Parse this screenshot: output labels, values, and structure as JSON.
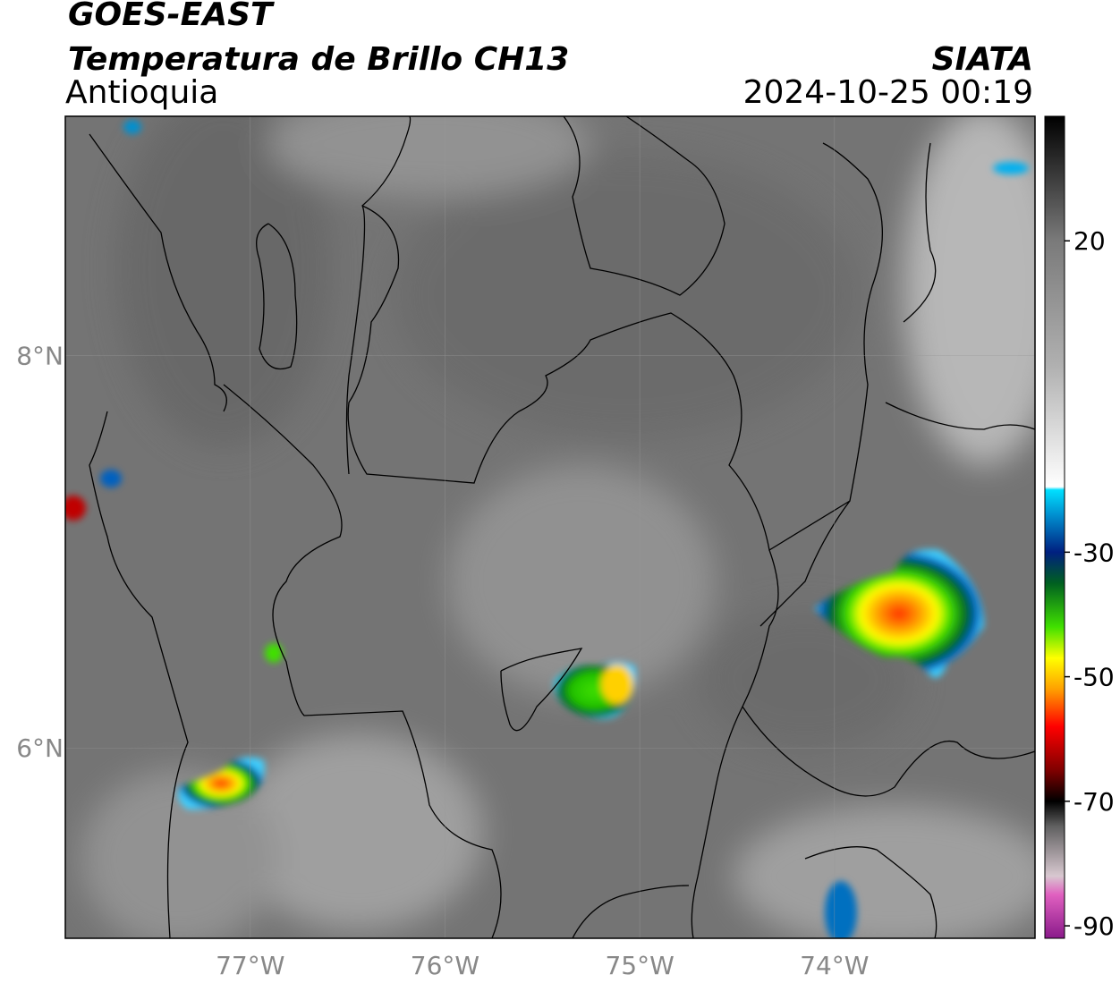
{
  "header": {
    "satellite": "GOES-EAST",
    "product": "Temperatura de Brillo CH13",
    "region": "Antioquia",
    "source": "SIATA",
    "datetime": "2024-10-25 00:19"
  },
  "map": {
    "lonlim": [
      -77.95,
      -72.97
    ],
    "latlim": [
      5.03,
      9.22
    ],
    "lonticks": [
      {
        "value": -77,
        "label": "77°W"
      },
      {
        "value": -76,
        "label": "76°W"
      },
      {
        "value": -75,
        "label": "75°W"
      },
      {
        "value": -74,
        "label": "74°W"
      }
    ],
    "latticks": [
      {
        "value": 6,
        "label": "6°N"
      },
      {
        "value": 8,
        "label": "8°N"
      }
    ],
    "grid": true
  },
  "colorbar": {
    "range": [
      -92,
      40
    ],
    "ticks": [
      20,
      -30,
      -50,
      -70,
      -90
    ],
    "colormap": [
      {
        "value": -92,
        "color": "#8a1a8a"
      },
      {
        "value": -85,
        "color": "#e060c0"
      },
      {
        "value": -82,
        "color": "#d8c8d0"
      },
      {
        "value": -74,
        "color": "#606060"
      },
      {
        "value": -70,
        "color": "#000000"
      },
      {
        "value": -65,
        "color": "#800000"
      },
      {
        "value": -58,
        "color": "#ff0000"
      },
      {
        "value": -52,
        "color": "#ffa000"
      },
      {
        "value": -47,
        "color": "#ffff00"
      },
      {
        "value": -42,
        "color": "#40e000"
      },
      {
        "value": -35,
        "color": "#006020"
      },
      {
        "value": -30,
        "color": "#002080"
      },
      {
        "value": -24,
        "color": "#0090d0"
      },
      {
        "value": -20,
        "color": "#00e0ff"
      },
      {
        "value": -19.5,
        "color": "#ffffff"
      },
      {
        "value": 0,
        "color": "#b0b0b0"
      },
      {
        "value": 20,
        "color": "#7a7a7a"
      },
      {
        "value": 40,
        "color": "#000000"
      }
    ]
  }
}
